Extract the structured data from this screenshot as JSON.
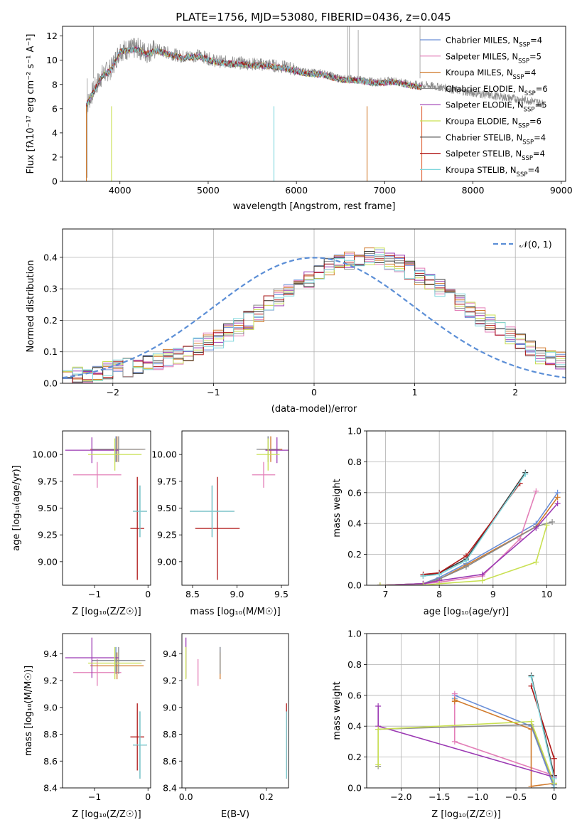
{
  "figure": {
    "title": "PLATE=1756, MJD=53080, FIBERID=0436, z=0.045"
  },
  "series_names": [
    "Chabrier MILES, N",
    "Salpeter MILES, N",
    "Kroupa MILES, N",
    "Chabrier ELODIE, N",
    "Salpeter ELODIE, N",
    "Kroupa ELODIE, N",
    "Chabrier STELIB, N",
    "Salpeter STELIB, N",
    "Kroupa STELIB, N"
  ],
  "series_nssp": [
    "=4",
    "=5",
    "=4",
    "=6",
    "=5",
    "=6",
    "=4",
    "=4",
    "=4"
  ],
  "series_colors": [
    "#6a8fd8",
    "#e37fb8",
    "#d07a2c",
    "#8a8a8a",
    "#9b39b3",
    "#c9e052",
    "#3b3b3b",
    "#b01818",
    "#7fd6dc"
  ],
  "chart_data": [
    {
      "type": "line",
      "title": "PLATE=1756, MJD=53080, FIBERID=0436, z=0.045",
      "xlabel": "wavelength [Angstrom, rest frame]",
      "ylabel": "Flux [f_λ 10^-17 erg cm^-2 s^-1 A^-1]",
      "xlim": [
        3350,
        9050
      ],
      "ylim": [
        0,
        12.8
      ],
      "xticks": [
        4000,
        5000,
        6000,
        7000,
        8000,
        9000
      ],
      "yticks": [
        0,
        2,
        4,
        6,
        8,
        10,
        12
      ],
      "grid": false,
      "legend": "top-right",
      "data_continuum": {
        "x": [
          3620,
          3700,
          3800,
          3900,
          4000,
          4100,
          4200,
          4300,
          4400,
          4500,
          4700,
          4900,
          5100,
          5300,
          5500,
          5700,
          5900,
          6100,
          6300,
          6500,
          6700,
          6900,
          7100,
          7300,
          7500,
          7700,
          7900,
          8100,
          8300,
          8500,
          8700,
          8800
        ],
        "y": [
          6.2,
          7.5,
          8.8,
          9.3,
          10.8,
          10.9,
          11.0,
          10.6,
          10.9,
          10.7,
          10.3,
          10.4,
          9.9,
          9.8,
          9.7,
          9.6,
          9.4,
          9.0,
          8.9,
          8.5,
          8.4,
          8.2,
          8.3,
          8.0,
          7.9,
          7.7,
          7.4,
          7.2,
          7.0,
          6.8,
          6.6,
          6.4
        ]
      },
      "model_continuum": {
        "x": [
          3620,
          3700,
          3800,
          3900,
          4000,
          4100,
          4200,
          4300,
          4400,
          4500,
          4700,
          4900,
          5100,
          5300,
          5500,
          5700,
          5900,
          6100,
          6300,
          6500,
          6700,
          6900,
          7100,
          7300,
          7420
        ],
        "y": [
          6.3,
          7.4,
          8.7,
          9.2,
          10.7,
          10.8,
          10.9,
          10.5,
          10.8,
          10.6,
          10.2,
          10.3,
          9.8,
          9.7,
          9.6,
          9.5,
          9.3,
          8.9,
          8.8,
          8.4,
          8.3,
          8.1,
          8.2,
          7.9,
          7.8
        ]
      }
    },
    {
      "type": "line",
      "xlabel": "(data-model)/error",
      "ylabel": "Normed distribution",
      "xlim": [
        -2.5,
        2.5
      ],
      "ylim": [
        0,
        0.49
      ],
      "xticks": [
        -2,
        -1,
        0,
        1,
        2
      ],
      "yticks": [
        0.0,
        0.1,
        0.2,
        0.3,
        0.4
      ],
      "grid": true,
      "legend": "top-right",
      "legend_label": "𝒩(0, 1)",
      "bin_width": 0.1,
      "bin_start": -2.5,
      "histogram_counts": [
        0.02,
        0.025,
        0.03,
        0.035,
        0.04,
        0.045,
        0.05,
        0.055,
        0.06,
        0.065,
        0.08,
        0.09,
        0.1,
        0.12,
        0.13,
        0.14,
        0.16,
        0.18,
        0.2,
        0.22,
        0.25,
        0.27,
        0.29,
        0.31,
        0.33,
        0.35,
        0.37,
        0.38,
        0.39,
        0.4,
        0.4,
        0.4,
        0.39,
        0.38,
        0.36,
        0.34,
        0.32,
        0.3,
        0.28,
        0.26,
        0.23,
        0.21,
        0.19,
        0.17,
        0.15,
        0.13,
        0.11,
        0.09,
        0.08,
        0.07,
        0.06,
        0.05,
        0.04,
        0.035,
        0.03,
        0.025,
        0.02
      ]
    },
    {
      "type": "scatter",
      "xlabel": "Z [log10(Z/Z☉)]",
      "ylabel": "age [log10(age/yr)]",
      "xlim": [
        -1.6,
        0.05
      ],
      "ylim": [
        8.78,
        10.22
      ],
      "xticks": [
        -1,
        0
      ],
      "yticks": [
        9.0,
        9.25,
        9.5,
        9.75,
        10.0
      ],
      "grid": false,
      "points": [
        {
          "x": -0.6,
          "y": 10.05,
          "xerr": 0.45,
          "yerr": 0.12
        },
        {
          "x": -0.95,
          "y": 9.81,
          "xerr": 0.45,
          "yerr": 0.12
        },
        {
          "x": -0.58,
          "y": 10.05,
          "xerr": 0.5,
          "yerr": 0.12
        },
        {
          "x": -0.55,
          "y": 10.05,
          "xerr": 0.5,
          "yerr": 0.12
        },
        {
          "x": -1.05,
          "y": 10.04,
          "xerr": 0.5,
          "yerr": 0.12
        },
        {
          "x": -0.62,
          "y": 10.0,
          "xerr": 0.5,
          "yerr": 0.15
        },
        {
          "x": -0.15,
          "y": 9.47,
          "xerr": 0.13,
          "yerr": 0.24
        },
        {
          "x": -0.2,
          "y": 9.31,
          "xerr": 0.13,
          "yerr": 0.48
        },
        {
          "x": -0.15,
          "y": 9.47,
          "xerr": 0.13,
          "yerr": 0.24
        }
      ]
    },
    {
      "type": "scatter",
      "xlabel": "mass [log10(M/M☉)]",
      "ylabel": "",
      "xlim": [
        8.38,
        9.58
      ],
      "ylim": [
        8.78,
        10.22
      ],
      "xticks": [
        8.5,
        9.0,
        9.5
      ],
      "yticks": [
        9.0,
        9.25,
        9.5,
        9.75,
        10.0
      ],
      "grid": false,
      "points": [
        {
          "x": 9.35,
          "y": 10.05,
          "xerr": 0.13,
          "yerr": 0.12
        },
        {
          "x": 9.3,
          "y": 9.81,
          "xerr": 0.13,
          "yerr": 0.12
        },
        {
          "x": 9.38,
          "y": 10.05,
          "xerr": 0.13,
          "yerr": 0.12
        },
        {
          "x": 9.35,
          "y": 10.05,
          "xerr": 0.13,
          "yerr": 0.12
        },
        {
          "x": 9.45,
          "y": 10.04,
          "xerr": 0.13,
          "yerr": 0.12
        },
        {
          "x": 9.35,
          "y": 10.0,
          "xerr": 0.13,
          "yerr": 0.15
        },
        {
          "x": 8.72,
          "y": 9.47,
          "xerr": 0.25,
          "yerr": 0.24
        },
        {
          "x": 8.78,
          "y": 9.31,
          "xerr": 0.25,
          "yerr": 0.48
        },
        {
          "x": 8.72,
          "y": 9.47,
          "xerr": 0.25,
          "yerr": 0.24
        }
      ]
    },
    {
      "type": "line",
      "xlabel": "age [log10(age/yr)]",
      "ylabel": "mass weight",
      "xlim": [
        6.65,
        10.35
      ],
      "ylim": [
        0,
        1.0
      ],
      "xticks": [
        7,
        8,
        9,
        10
      ],
      "yticks": [
        0.0,
        0.2,
        0.4,
        0.6,
        0.8,
        1.0
      ],
      "grid": true,
      "series": [
        {
          "name": "Chabrier MILES",
          "x": [
            6.9,
            7.7,
            8.0,
            8.5,
            9.8,
            10.2
          ],
          "y": [
            0.0,
            0.01,
            0.05,
            0.14,
            0.4,
            0.6
          ]
        },
        {
          "name": "Salpeter MILES",
          "x": [
            6.9,
            7.7,
            8.0,
            8.8,
            9.5,
            9.8
          ],
          "y": [
            0.0,
            0.01,
            0.02,
            0.06,
            0.3,
            0.61
          ]
        },
        {
          "name": "Kroupa MILES",
          "x": [
            6.9,
            7.7,
            8.0,
            8.5,
            9.8,
            10.2
          ],
          "y": [
            0.0,
            0.01,
            0.04,
            0.13,
            0.38,
            0.57
          ]
        },
        {
          "name": "Chabrier ELODIE",
          "x": [
            6.9,
            7.7,
            8.0,
            8.5,
            9.8,
            10.1
          ],
          "y": [
            0.0,
            0.01,
            0.04,
            0.12,
            0.38,
            0.41
          ]
        },
        {
          "name": "Salpeter ELODIE",
          "x": [
            6.9,
            7.7,
            8.0,
            8.8,
            9.8,
            10.2
          ],
          "y": [
            0.0,
            0.01,
            0.03,
            0.07,
            0.37,
            0.53
          ]
        },
        {
          "name": "Kroupa ELODIE",
          "x": [
            6.9,
            7.7,
            8.0,
            8.8,
            9.8,
            10.0
          ],
          "y": [
            0.0,
            0.0,
            0.01,
            0.03,
            0.15,
            0.39
          ]
        },
        {
          "name": "Chabrier STELIB",
          "x": [
            7.7,
            8.0,
            8.5,
            9.6
          ],
          "y": [
            0.06,
            0.08,
            0.17,
            0.73
          ]
        },
        {
          "name": "Salpeter STELIB",
          "x": [
            7.7,
            8.0,
            8.5,
            9.5
          ],
          "y": [
            0.07,
            0.08,
            0.19,
            0.66
          ]
        },
        {
          "name": "Kroupa STELIB",
          "x": [
            7.7,
            8.0,
            8.5,
            9.6
          ],
          "y": [
            0.06,
            0.07,
            0.16,
            0.72
          ]
        }
      ]
    },
    {
      "type": "scatter",
      "xlabel": "Z [log10(Z/Z☉)]",
      "ylabel": "mass [log10(M/M☉)]",
      "xlim": [
        -1.6,
        0.05
      ],
      "ylim": [
        8.4,
        9.55
      ],
      "xticks": [
        -1,
        0
      ],
      "yticks": [
        8.4,
        8.6,
        8.8,
        9.0,
        9.2,
        9.4
      ],
      "grid": false,
      "points": [
        {
          "x": -0.6,
          "y": 9.35,
          "xerr": 0.45,
          "yerr": 0.1
        },
        {
          "x": -0.95,
          "y": 9.26,
          "xerr": 0.45,
          "yerr": 0.1
        },
        {
          "x": -0.58,
          "y": 9.31,
          "xerr": 0.5,
          "yerr": 0.1
        },
        {
          "x": -0.55,
          "y": 9.35,
          "xerr": 0.5,
          "yerr": 0.1
        },
        {
          "x": -1.05,
          "y": 9.37,
          "xerr": 0.5,
          "yerr": 0.15
        },
        {
          "x": -0.62,
          "y": 9.33,
          "xerr": 0.5,
          "yerr": 0.12
        },
        {
          "x": -0.15,
          "y": 8.72,
          "xerr": 0.13,
          "yerr": 0.25
        },
        {
          "x": -0.2,
          "y": 8.78,
          "xerr": 0.13,
          "yerr": 0.25
        },
        {
          "x": -0.15,
          "y": 8.72,
          "xerr": 0.13,
          "yerr": 0.25
        }
      ]
    },
    {
      "type": "scatter",
      "xlabel": "E(B-V)",
      "ylabel": "",
      "xlim": [
        -0.01,
        0.255
      ],
      "ylim": [
        8.4,
        9.55
      ],
      "xticks": [
        0.0,
        0.2
      ],
      "yticks": [
        8.4,
        8.6,
        8.8,
        9.0,
        9.2,
        9.4
      ],
      "grid": false,
      "points": [
        {
          "x": 0.085,
          "y": 9.35,
          "xerr": 0,
          "yerr": 0.1
        },
        {
          "x": 0.03,
          "y": 9.26,
          "xerr": 0,
          "yerr": 0.1
        },
        {
          "x": 0.085,
          "y": 9.31,
          "xerr": 0,
          "yerr": 0.1
        },
        {
          "x": 0.085,
          "y": 9.35,
          "xerr": 0,
          "yerr": 0.1
        },
        {
          "x": 0.0,
          "y": 9.37,
          "xerr": 0,
          "yerr": 0.15
        },
        {
          "x": 0.0,
          "y": 9.33,
          "xerr": 0,
          "yerr": 0.12
        },
        {
          "x": 0.25,
          "y": 8.72,
          "xerr": 0,
          "yerr": 0.25
        },
        {
          "x": 0.25,
          "y": 8.78,
          "xerr": 0,
          "yerr": 0.25
        },
        {
          "x": 0.25,
          "y": 8.72,
          "xerr": 0,
          "yerr": 0.25
        }
      ]
    },
    {
      "type": "line",
      "xlabel": "Z [log10(Z/Z☉)]",
      "ylabel": "mass weight",
      "xlim": [
        -2.45,
        0.15
      ],
      "ylim": [
        0,
        1.0
      ],
      "xticks": [
        -2.0,
        -1.5,
        -1.0,
        -0.5,
        0.0
      ],
      "yticks": [
        0.0,
        0.2,
        0.4,
        0.6,
        0.8,
        1.0
      ],
      "grid": true,
      "series": [
        {
          "name": "Chabrier MILES",
          "x": [
            -1.3,
            -1.3,
            -0.3,
            0.0
          ],
          "y": [
            0.58,
            0.6,
            0.4,
            0.0
          ]
        },
        {
          "name": "Salpeter MILES",
          "x": [
            -1.3,
            -1.3,
            0.0
          ],
          "y": [
            0.61,
            0.3,
            0.08
          ]
        },
        {
          "name": "Kroupa MILES",
          "x": [
            -1.3,
            -1.3,
            -0.3,
            -0.3,
            0.0
          ],
          "y": [
            0.56,
            0.57,
            0.38,
            0.01,
            0.03
          ]
        },
        {
          "name": "Chabrier ELODIE",
          "x": [
            -2.3,
            -2.3,
            -0.3,
            0.0
          ],
          "y": [
            0.14,
            0.38,
            0.41,
            0.02
          ]
        },
        {
          "name": "Salpeter ELODIE",
          "x": [
            -2.3,
            -2.3,
            0.0
          ],
          "y": [
            0.53,
            0.4,
            0.07
          ]
        },
        {
          "name": "Kroupa ELODIE",
          "x": [
            -2.3,
            -2.3,
            -0.3,
            0.0
          ],
          "y": [
            0.15,
            0.38,
            0.43,
            0.03
          ]
        },
        {
          "name": "Chabrier STELIB",
          "x": [
            -0.3,
            0.0,
            0.0
          ],
          "y": [
            0.73,
            0.08,
            0.0
          ]
        },
        {
          "name": "Salpeter STELIB",
          "x": [
            -0.3,
            0.0,
            0.0
          ],
          "y": [
            0.66,
            0.19,
            0.0
          ]
        },
        {
          "name": "Kroupa STELIB",
          "x": [
            -0.3,
            0.0,
            0.0
          ],
          "y": [
            0.72,
            0.06,
            0.0
          ]
        }
      ]
    }
  ]
}
